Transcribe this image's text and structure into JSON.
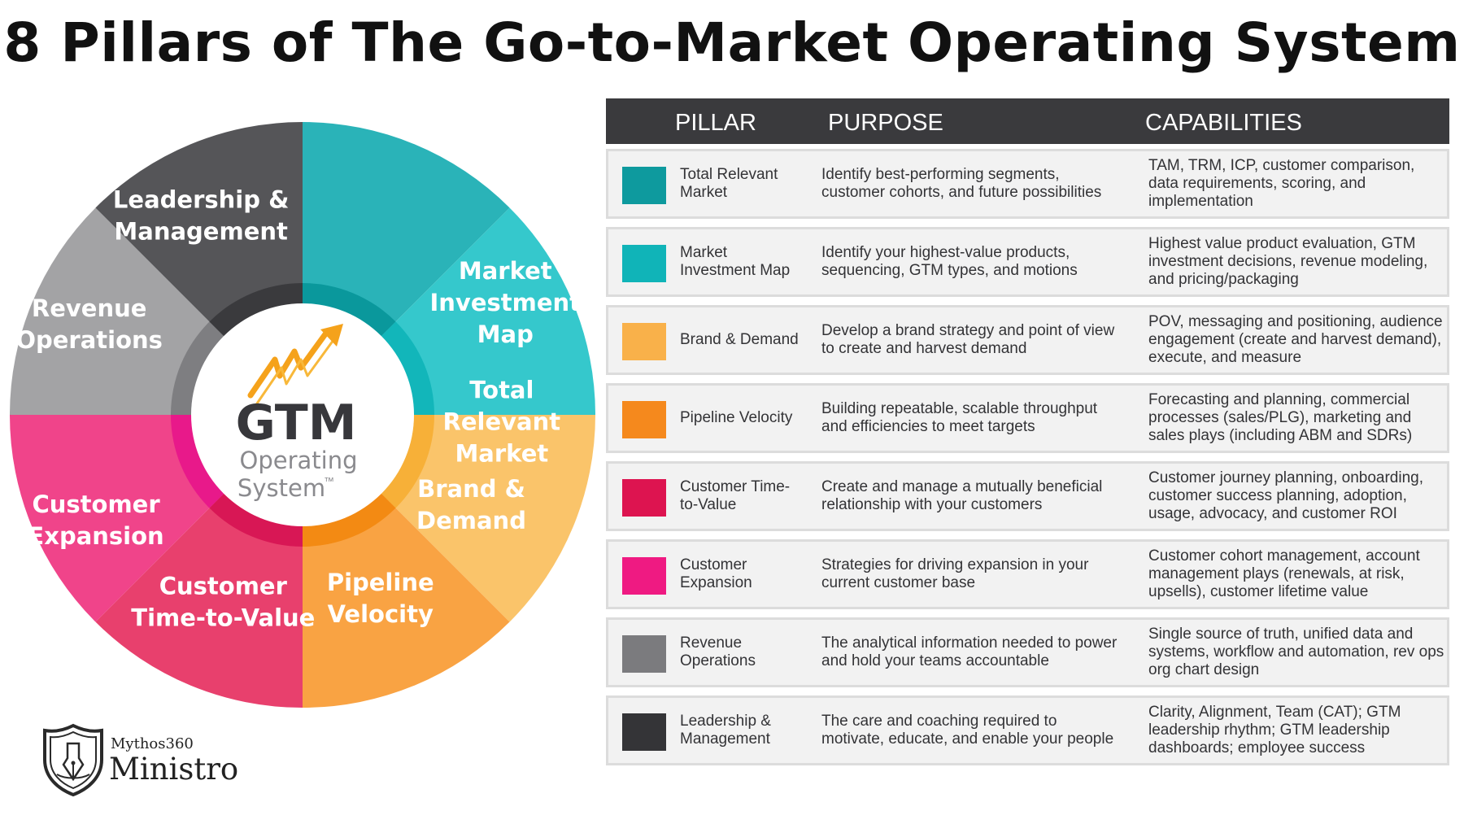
{
  "title": "8 Pillars of The Go-to-Market Operating System",
  "center": {
    "line1": "GTM",
    "line2": "Operating",
    "line3": "System",
    "tm": "™"
  },
  "wheel": {
    "segments": [
      {
        "lines": [
          "Total",
          "Relevant",
          "Market"
        ],
        "color": "#2ab3b8"
      },
      {
        "lines": [
          "Market",
          "Investment",
          "Map"
        ],
        "color": "#35c8cc"
      },
      {
        "lines": [
          "Brand &",
          "Demand"
        ],
        "color": "#fac46a"
      },
      {
        "lines": [
          "Pipeline",
          "Velocity"
        ],
        "color": "#f9a343"
      },
      {
        "lines": [
          "Customer",
          "Time-to-Value"
        ],
        "color": "#e8406d"
      },
      {
        "lines": [
          "Customer",
          "Expansion"
        ],
        "color": "#f0448a"
      },
      {
        "lines": [
          "Revenue",
          "Operations"
        ],
        "color": "#a3a3a5"
      },
      {
        "lines": [
          "Leadership &",
          "Management"
        ],
        "color": "#555558"
      }
    ],
    "inner_ring_colors": [
      "#0a989c",
      "#12b6ba",
      "#f7b038",
      "#f38a13",
      "#d81755",
      "#e8198a",
      "#7e7e81",
      "#3a3a3d"
    ]
  },
  "table": {
    "headers": {
      "pillar": "PILLAR",
      "purpose": "PURPOSE",
      "capabilities": "CAPABILITIES"
    },
    "rows": [
      {
        "name": "Total Relevant Market",
        "purpose": "Identify best-performing segments, customer cohorts, and future possibilities",
        "capabilities": "TAM, TRM, ICP, customer comparison, data requirements, scoring, and implementation",
        "color": "#0e9a9e"
      },
      {
        "name": "Market Investment Map",
        "purpose": "Identify your highest-value products, sequencing, GTM types, and motions",
        "capabilities": "Highest value product evaluation, GTM investment decisions, revenue modeling, and pricing/packaging",
        "color": "#10b4b8"
      },
      {
        "name": "Brand & Demand",
        "purpose": "Develop a brand strategy and point of view to create and harvest demand",
        "capabilities": "POV, messaging and positioning, audience engagement (create and harvest demand), execute, and measure",
        "color": "#f9b14a"
      },
      {
        "name": "Pipeline Velocity",
        "purpose": "Building repeatable, scalable throughput and efficiencies to meet targets",
        "capabilities": "Forecasting and planning, commercial processes (sales/PLG), marketing and sales plays (including ABM and SDRs)",
        "color": "#f5891d"
      },
      {
        "name": "Customer Time-to-Value",
        "purpose": "Create and manage a mutually beneficial relationship with your customers",
        "capabilities": "Customer journey planning, onboarding, customer success planning, adoption, usage, advocacy, and customer ROI",
        "color": "#dd1450"
      },
      {
        "name": "Customer Expansion",
        "purpose": "Strategies for driving expansion in your current customer base",
        "capabilities": "Customer cohort management, account management plays (renewals, at risk, upsells), customer lifetime value",
        "color": "#ef1a82"
      },
      {
        "name": "Revenue Operations",
        "purpose": "The analytical information needed to power and hold your teams accountable",
        "capabilities": "Single source of truth, unified data and systems, workflow and automation, rev ops org chart design",
        "color": "#7b7b7e"
      },
      {
        "name": "Leadership & Management",
        "purpose": "The care and coaching required to motivate, educate, and enable your people",
        "capabilities": "Clarity, Alignment, Team (CAT); GTM leadership rhythm; GTM leadership dashboards; employee success",
        "color": "#343437"
      }
    ]
  },
  "logo": {
    "small": "Mythos360",
    "big": "Ministro"
  },
  "icons": {
    "center": "trend-arrow-icon",
    "logo": "shield-pen-icon"
  }
}
